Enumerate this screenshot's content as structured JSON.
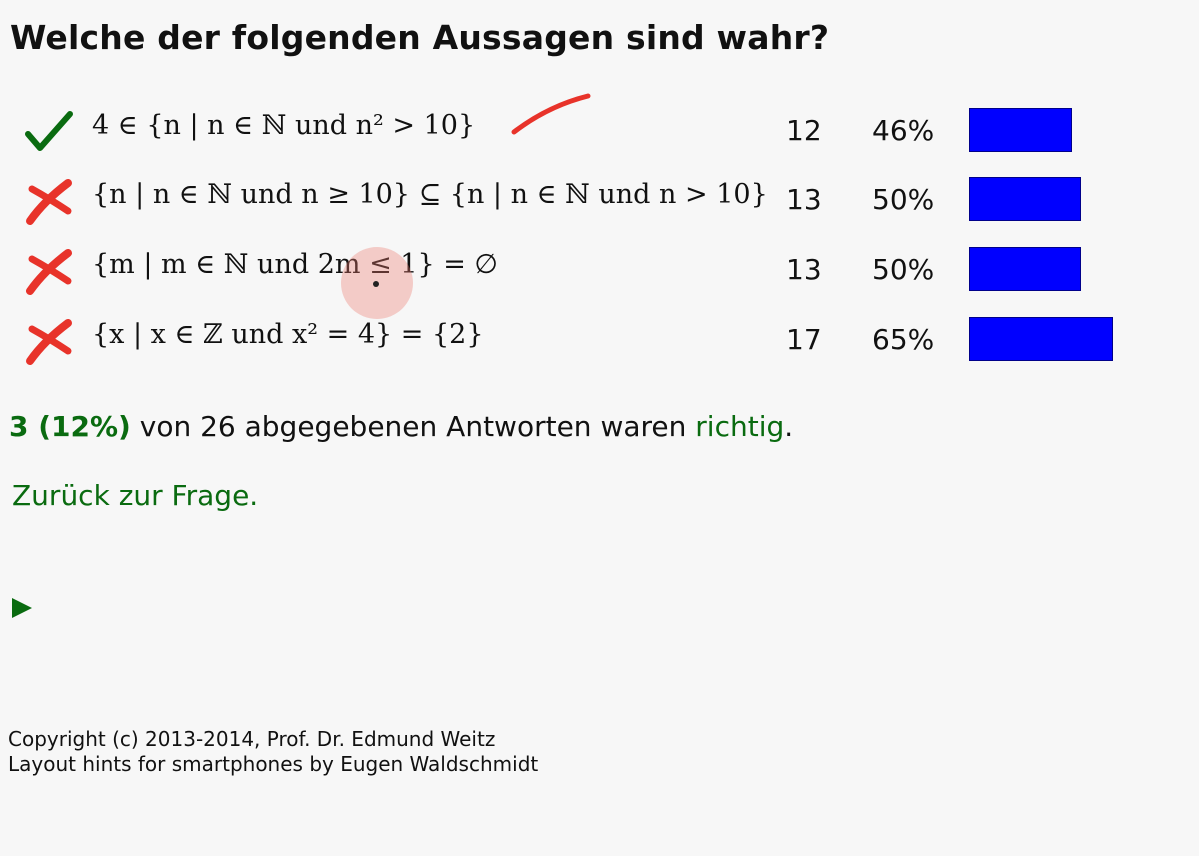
{
  "title": "Welche der folgenden Aussagen sind wahr?",
  "colors": {
    "correct": "#0a6b10",
    "wrong": "#e8332a",
    "bar": "#0000ff"
  },
  "options": [
    {
      "icon": "check-icon",
      "statement": "4 ∈ {n | n ∈ ℕ und n² > 10}",
      "count": "12",
      "percent": "46%",
      "fraction": 0.46
    },
    {
      "icon": "cross-icon",
      "statement": "{n | n ∈ ℕ und n ≥ 10} ⊆ {n | n ∈ ℕ und n > 10}",
      "count": "13",
      "percent": "50%",
      "fraction": 0.5
    },
    {
      "icon": "cross-icon",
      "statement": "{m | m ∈ ℕ und 2m ≤ 1} = ∅",
      "count": "13",
      "percent": "50%",
      "fraction": 0.5
    },
    {
      "icon": "cross-icon",
      "statement": "{x | x ∈ ℤ und x² = 4} = {2}",
      "count": "17",
      "percent": "65%",
      "fraction": 0.65
    }
  ],
  "summary": {
    "correct_count": "3 (12%)",
    "middle": " von 26 abgegebenen Antworten waren ",
    "correct_word": "richtig",
    "end": "."
  },
  "back_link": "Zurück zur Frage.",
  "play_icon": "play-icon",
  "footer": {
    "line1": "Copyright (c) 2013-2014, Prof. Dr. Edmund Weitz",
    "line2": "Layout hints for smartphones by Eugen Waldschmidt"
  }
}
